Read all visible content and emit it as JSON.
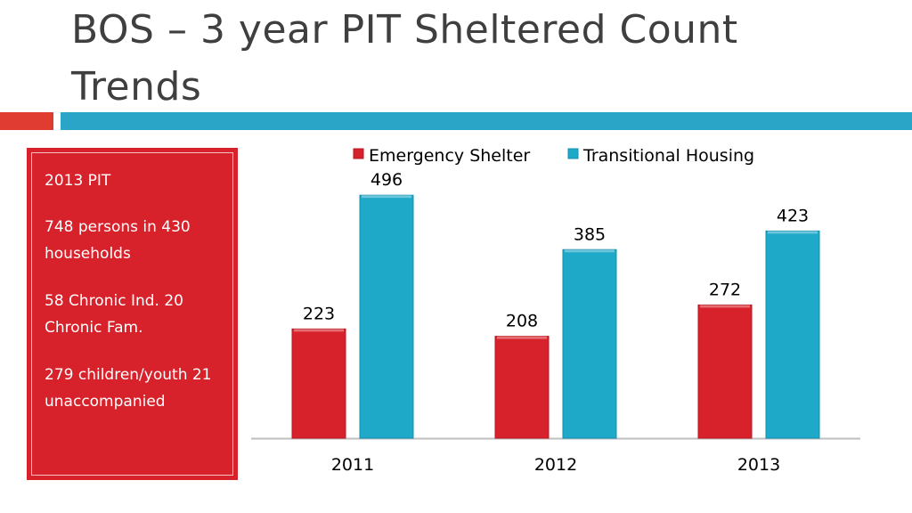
{
  "slide": {
    "title": "BOS – 3 year PIT Sheltered Count Trends"
  },
  "sidebar": {
    "lines": [
      "2013 PIT",
      "748 persons in 430 households",
      "58 Chronic Ind. 20 Chronic Fam.",
      "279 children/youth 21 unaccompanied"
    ]
  },
  "colors": {
    "accent_red": "#d8222b",
    "accent_blue": "#2aa4c7"
  },
  "chart_data": {
    "type": "bar",
    "categories": [
      "2011",
      "2012",
      "2013"
    ],
    "series": [
      {
        "name": "Emergency Shelter",
        "values": [
          223,
          208,
          272
        ],
        "color": "#d8222b"
      },
      {
        "name": "Transitional Housing",
        "values": [
          496,
          385,
          423
        ],
        "color": "#1ea9c9"
      }
    ],
    "legend": "top",
    "grid": false,
    "ylim": [
      0,
      560
    ]
  }
}
